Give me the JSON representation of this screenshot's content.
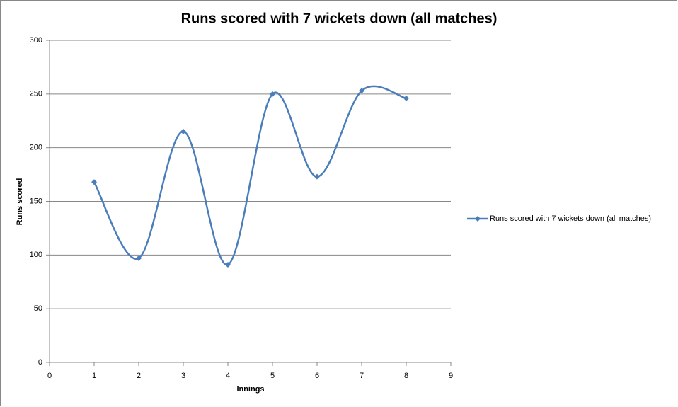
{
  "chart_data": {
    "type": "scatter_smooth",
    "title": "Runs scored with 7 wickets down (all matches)",
    "x_label": "Innings",
    "y_label": "Runs scored",
    "series": [
      {
        "name": "Runs scored with 7 wickets down (all matches)",
        "color": "#4a7ebb",
        "x": [
          1,
          2,
          3,
          4,
          5,
          6,
          7,
          8
        ],
        "values": [
          168,
          97,
          215,
          91,
          250,
          173,
          253,
          246
        ]
      }
    ],
    "xlim": [
      0,
      9
    ],
    "xticks": [
      0,
      1,
      2,
      3,
      4,
      5,
      6,
      7,
      8,
      9
    ],
    "ylim": [
      0,
      300
    ],
    "yticks": [
      0,
      50,
      100,
      150,
      200,
      250,
      300
    ],
    "grid": true,
    "legend": "right"
  }
}
